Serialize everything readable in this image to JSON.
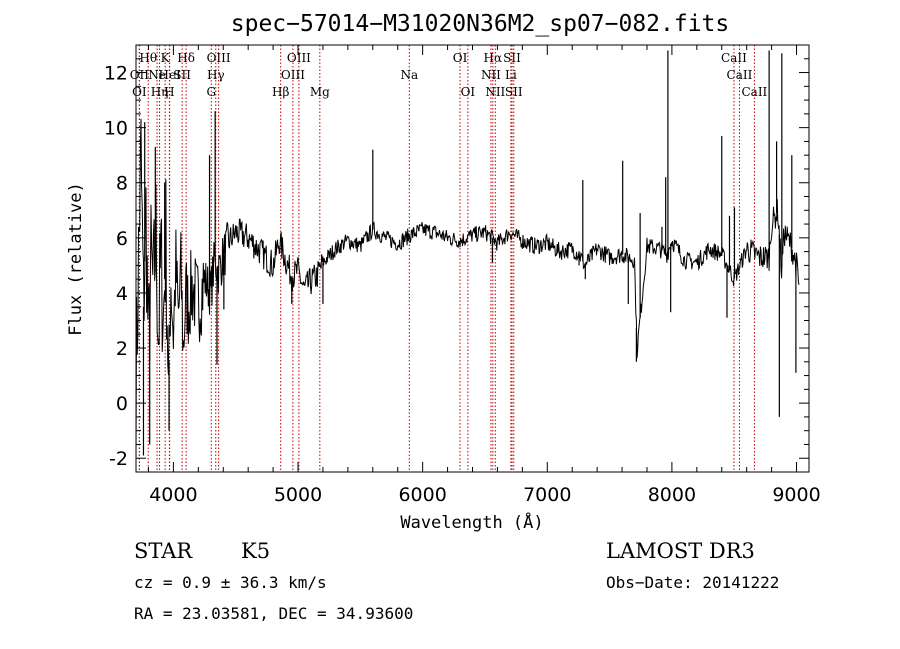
{
  "chart_data": {
    "type": "line",
    "title": "spec−57014−M31020N36M2_sp07−082.fits",
    "xlabel": "Wavelength (Å)",
    "ylabel": "Flux (relative)",
    "xlim": [
      3700,
      9100
    ],
    "ylim": [
      -2.5,
      13.0
    ],
    "x_ticks": [
      4000,
      5000,
      6000,
      7000,
      8000,
      9000
    ],
    "y_ticks": [
      -2,
      0,
      2,
      4,
      6,
      8,
      10,
      12
    ],
    "spectrum": {
      "x": [
        3700,
        3720,
        3740,
        3760,
        3780,
        3800,
        3820,
        3840,
        3860,
        3880,
        3900,
        3920,
        3940,
        3960,
        3980,
        4000,
        4020,
        4040,
        4060,
        4080,
        4100,
        4120,
        4150,
        4200,
        4250,
        4300,
        4330,
        4360,
        4400,
        4450,
        4500,
        4600,
        4700,
        4800,
        4850,
        4900,
        4950,
        5000,
        5050,
        5100,
        5150,
        5200,
        5300,
        5400,
        5500,
        5600,
        5700,
        5800,
        5900,
        6000,
        6100,
        6200,
        6300,
        6400,
        6500,
        6560,
        6600,
        6700,
        6800,
        6900,
        7000,
        7100,
        7200,
        7260,
        7300,
        7400,
        7500,
        7600,
        7700,
        7720,
        7800,
        7900,
        7960,
        8000,
        8100,
        8200,
        8300,
        8400,
        8500,
        8600,
        8700,
        8780,
        8800,
        8850,
        8880,
        8900,
        8950,
        9000,
        9020
      ],
      "y": [
        0.5,
        5.2,
        9.0,
        3.5,
        6.8,
        2.0,
        5.0,
        4.0,
        6.2,
        2.5,
        5.3,
        3.0,
        6.0,
        0.5,
        4.5,
        2.5,
        5.0,
        3.0,
        4.8,
        2.0,
        4.0,
        3.5,
        4.2,
        3.6,
        4.5,
        4.0,
        5.2,
        4.8,
        5.3,
        5.9,
        6.2,
        6.0,
        5.5,
        5.0,
        5.9,
        5.2,
        4.6,
        4.8,
        4.1,
        4.4,
        4.6,
        5.1,
        5.6,
        5.9,
        5.7,
        6.3,
        6.0,
        5.8,
        6.1,
        6.3,
        6.2,
        6.0,
        5.9,
        6.1,
        6.2,
        6.0,
        5.8,
        6.2,
        5.9,
        5.7,
        5.8,
        5.5,
        5.6,
        5.4,
        5.0,
        5.6,
        5.3,
        5.4,
        5.2,
        1.9,
        5.7,
        5.6,
        5.4,
        5.9,
        5.2,
        5.1,
        5.6,
        5.4,
        4.5,
        5.6,
        5.3,
        5.3,
        6.5,
        7.0,
        4.8,
        6.2,
        5.8,
        5.0,
        4.2
      ]
    },
    "spikes": [
      {
        "x": 3770,
        "y": 10.2
      },
      {
        "x": 3760,
        "y": -1.9
      },
      {
        "x": 3810,
        "y": -1.5
      },
      {
        "x": 3855,
        "y": 9.3
      },
      {
        "x": 3930,
        "y": 8.0
      },
      {
        "x": 3965,
        "y": -1.0
      },
      {
        "x": 4290,
        "y": 9.0
      },
      {
        "x": 4335,
        "y": 10.6
      },
      {
        "x": 4350,
        "y": 1.4
      },
      {
        "x": 4405,
        "y": 3.4
      },
      {
        "x": 4950,
        "y": 3.6
      },
      {
        "x": 5200,
        "y": 3.6
      },
      {
        "x": 5600,
        "y": 9.2
      },
      {
        "x": 6560,
        "y": 5.1
      },
      {
        "x": 7255,
        "y": 5.0
      },
      {
        "x": 7285,
        "y": 8.1
      },
      {
        "x": 7305,
        "y": 4.5
      },
      {
        "x": 7605,
        "y": 8.8
      },
      {
        "x": 7650,
        "y": 3.6
      },
      {
        "x": 7715,
        "y": 1.5
      },
      {
        "x": 7745,
        "y": 6.9
      },
      {
        "x": 7920,
        "y": 6.4
      },
      {
        "x": 7950,
        "y": 8.2
      },
      {
        "x": 7968,
        "y": 12.8
      },
      {
        "x": 7990,
        "y": 3.3
      },
      {
        "x": 8400,
        "y": 9.7
      },
      {
        "x": 8442,
        "y": 3.1
      },
      {
        "x": 8462,
        "y": 6.8
      },
      {
        "x": 8502,
        "y": 7.1
      },
      {
        "x": 8780,
        "y": 12.8
      },
      {
        "x": 8840,
        "y": 9.5
      },
      {
        "x": 8862,
        "y": -0.5
      },
      {
        "x": 8882,
        "y": 12.7
      },
      {
        "x": 8962,
        "y": 9.0
      },
      {
        "x": 8995,
        "y": 1.1
      }
    ],
    "lines": [
      {
        "x": 3798,
        "row": 1,
        "label": "Hθ"
      },
      {
        "x": 3727,
        "row": 2,
        "label": "OII"
      },
      {
        "x": 3727,
        "row": 3,
        "label": "OI"
      },
      {
        "x": 3869,
        "row": 2,
        "label": "Ne"
      },
      {
        "x": 3889,
        "row": 3,
        "label": "Hη"
      },
      {
        "x": 3934,
        "row": 1,
        "label": "K"
      },
      {
        "x": 3970,
        "row": 2,
        "label": "HeI"
      },
      {
        "x": 3968,
        "row": 3,
        "label": "H"
      },
      {
        "x": 4102,
        "row": 1,
        "label": "Hδ"
      },
      {
        "x": 4070,
        "row": 2,
        "label": "SII"
      },
      {
        "x": 4363,
        "row": 1,
        "label": "OIII"
      },
      {
        "x": 4340,
        "row": 2,
        "label": "Hγ"
      },
      {
        "x": 4304,
        "row": 3,
        "label": "G"
      },
      {
        "x": 5007,
        "row": 1,
        "label": "OIII"
      },
      {
        "x": 4959,
        "row": 2,
        "label": "OIII"
      },
      {
        "x": 4861,
        "row": 3,
        "label": "Hβ"
      },
      {
        "x": 5175,
        "row": 3,
        "label": "Mg"
      },
      {
        "x": 5893,
        "row": 2,
        "label": "Na"
      },
      {
        "x": 6300,
        "row": 1,
        "label": "OI"
      },
      {
        "x": 6363,
        "row": 3,
        "label": "OI"
      },
      {
        "x": 6563,
        "row": 1,
        "label": "Hα"
      },
      {
        "x": 6548,
        "row": 2,
        "label": "NII"
      },
      {
        "x": 6583,
        "row": 3,
        "label": "NII"
      },
      {
        "x": 6717,
        "row": 1,
        "label": "SII"
      },
      {
        "x": 6708,
        "row": 2,
        "label": "Li"
      },
      {
        "x": 6731,
        "row": 3,
        "label": "SII"
      },
      {
        "x": 8498,
        "row": 1,
        "label": "CaII"
      },
      {
        "x": 8542,
        "row": 2,
        "label": "CaII"
      },
      {
        "x": 8662,
        "row": 3,
        "label": "CaII"
      }
    ],
    "line_color": "#c00000"
  },
  "info": {
    "class": "STAR",
    "subclass": "K5",
    "survey": "LAMOST DR3",
    "cz": "cz = 0.9 ± 36.3 km/s",
    "obs_date": "Obs−Date: 20141222",
    "coords": "RA =  23.03581, DEC =  34.93600"
  }
}
